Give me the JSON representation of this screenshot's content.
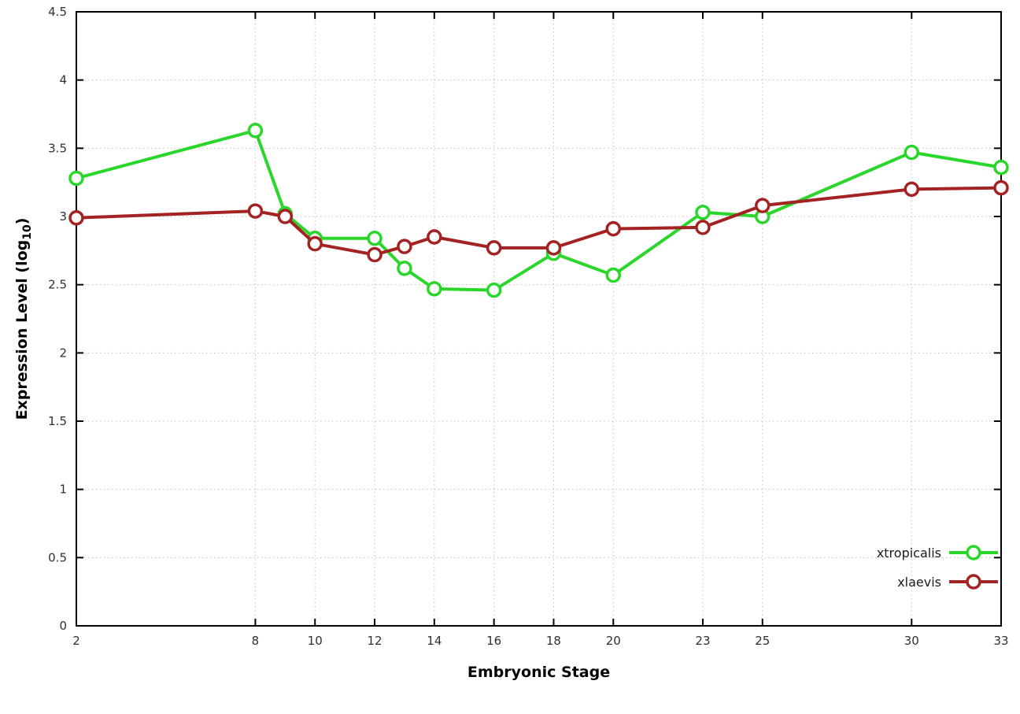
{
  "chart_data": {
    "type": "line",
    "title": "",
    "xlabel": "Embryonic Stage",
    "ylabel": "Expression Level (log10)",
    "ylabel_parts": {
      "pre": "Expression Level (log",
      "sub": "10",
      "post": ")"
    },
    "x": [
      2,
      8,
      9,
      10,
      12,
      13,
      14,
      16,
      18,
      20,
      23,
      25,
      30,
      33
    ],
    "series": [
      {
        "name": "xtropicalis",
        "color": "#2bd62b",
        "values": [
          3.28,
          3.63,
          3.02,
          2.84,
          2.84,
          2.62,
          2.47,
          2.46,
          2.73,
          2.57,
          3.03,
          3.0,
          3.47,
          3.36
        ]
      },
      {
        "name": "xlaevis",
        "color": "#a32222",
        "values": [
          2.99,
          3.04,
          3.0,
          2.8,
          2.72,
          2.78,
          2.85,
          2.77,
          2.77,
          2.91,
          2.92,
          3.08,
          3.2,
          3.21
        ]
      }
    ],
    "xlim": [
      2,
      33
    ],
    "ylim": [
      0,
      4.5
    ],
    "xticks": [
      2,
      8,
      10,
      12,
      14,
      16,
      18,
      20,
      23,
      25,
      30,
      33
    ],
    "yticks": [
      0,
      0.5,
      1,
      1.5,
      2,
      2.5,
      3,
      3.5,
      4,
      4.5
    ],
    "grid": true,
    "legend_position": "bottom-right",
    "colors": {
      "grid": "#bfbfbf",
      "border": "#000000",
      "tick_text": "#303030",
      "background": "#ffffff"
    }
  }
}
